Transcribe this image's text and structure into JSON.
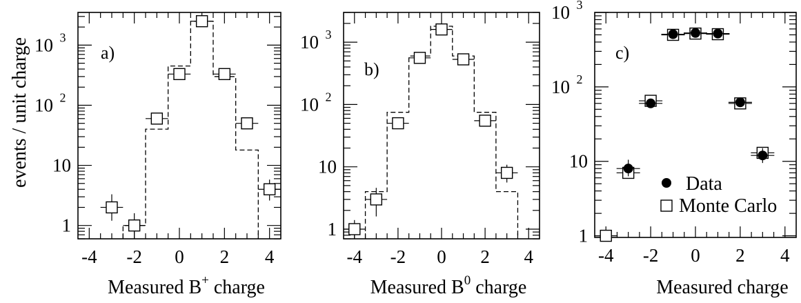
{
  "chart_data": [
    {
      "type": "histogram",
      "panel_label": "a)",
      "xlabel": "Measured B",
      "xlabel_sup": "+",
      "xlabel_tail": " charge",
      "ylabel": "events / unit charge",
      "y_scale": "log",
      "xlim": [
        -4.5,
        4.5
      ],
      "ylim": [
        0.6,
        3500
      ],
      "x_ticks": [
        -4,
        -2,
        0,
        2,
        4
      ],
      "x_tick_labels": [
        "-4",
        "-2",
        "0",
        "2",
        "4"
      ],
      "y_ticks": [
        {
          "value": 1,
          "label": "1"
        },
        {
          "value": 10,
          "label": "10"
        },
        {
          "value": 100,
          "label": "10",
          "sup": "2"
        },
        {
          "value": 1000,
          "label": "10",
          "sup": "3"
        }
      ],
      "data_points": [
        {
          "x": -3,
          "y": 2.0,
          "yerr": [
            1.2,
            3.3
          ]
        },
        {
          "x": -2,
          "y": 1.0,
          "yerr": [
            0.6,
            1.6
          ]
        },
        {
          "x": -1,
          "y": 60,
          "yerr": [
            52,
            68
          ]
        },
        {
          "x": 0,
          "y": 330,
          "yerr": [
            310,
            350
          ]
        },
        {
          "x": 1,
          "y": 2500,
          "yerr": [
            2420,
            2580
          ]
        },
        {
          "x": 2,
          "y": 330,
          "yerr": [
            310,
            350
          ]
        },
        {
          "x": 3,
          "y": 50,
          "yerr": [
            43,
            57
          ]
        },
        {
          "x": 4,
          "y": 4.0,
          "yerr": [
            2.6,
            5.8
          ]
        }
      ],
      "mc_histogram": [
        {
          "x": -2,
          "y": 1.0
        },
        {
          "x": -1,
          "y": 40
        },
        {
          "x": 0,
          "y": 450
        },
        {
          "x": 1,
          "y": 2500
        },
        {
          "x": 2,
          "y": 300
        },
        {
          "x": 3,
          "y": 18
        }
      ]
    },
    {
      "type": "histogram",
      "panel_label": "b)",
      "xlabel": "Measured B",
      "xlabel_sup": "0",
      "xlabel_tail": " charge",
      "ylabel": "",
      "y_scale": "log",
      "xlim": [
        -4.5,
        4.5
      ],
      "ylim": [
        0.7,
        3000
      ],
      "x_ticks": [
        -4,
        -2,
        0,
        2,
        4
      ],
      "x_tick_labels": [
        "-4",
        "-2",
        "0",
        "2",
        "4"
      ],
      "y_ticks": [
        {
          "value": 1,
          "label": "1"
        },
        {
          "value": 10,
          "label": "10"
        },
        {
          "value": 100,
          "label": "10",
          "sup": "2"
        },
        {
          "value": 1000,
          "label": "10",
          "sup": "3"
        }
      ],
      "data_points": [
        {
          "x": -4,
          "y": 1.0,
          "yerr": [
            0.7,
            1.4
          ]
        },
        {
          "x": -3,
          "y": 3.0,
          "yerr": [
            1.6,
            4.6
          ]
        },
        {
          "x": -2,
          "y": 50,
          "yerr": [
            43,
            57
          ]
        },
        {
          "x": -1,
          "y": 560,
          "yerr": [
            530,
            590
          ]
        },
        {
          "x": 0,
          "y": 1600,
          "yerr": [
            1540,
            1660
          ]
        },
        {
          "x": 1,
          "y": 530,
          "yerr": [
            500,
            560
          ]
        },
        {
          "x": 2,
          "y": 55,
          "yerr": [
            48,
            62
          ]
        },
        {
          "x": 3,
          "y": 8.0,
          "yerr": [
            5.6,
            10.8
          ]
        }
      ],
      "mc_histogram": [
        {
          "x": -3,
          "y": 4
        },
        {
          "x": -2,
          "y": 75
        },
        {
          "x": -1,
          "y": 600
        },
        {
          "x": 0,
          "y": 1800
        },
        {
          "x": 1,
          "y": 600
        },
        {
          "x": 2,
          "y": 75
        },
        {
          "x": 3,
          "y": 4
        }
      ]
    },
    {
      "type": "scatter",
      "panel_label": "c)",
      "xlabel": "Measured charge",
      "xlabel_sup": "",
      "xlabel_tail": "",
      "ylabel": "",
      "y_scale": "log",
      "xlim": [
        -4.5,
        4.5
      ],
      "ylim": [
        0.95,
        1000
      ],
      "x_ticks": [
        -4,
        -2,
        0,
        2,
        4
      ],
      "x_tick_labels": [
        "-4",
        "-2",
        "0",
        "2",
        "4"
      ],
      "y_ticks": [
        {
          "value": 1,
          "label": "1"
        },
        {
          "value": 10,
          "label": "10"
        },
        {
          "value": 100,
          "label": "10",
          "sup": "2"
        },
        {
          "value": 1000,
          "label": "10",
          "sup": "3"
        }
      ],
      "series": [
        {
          "name": "Data",
          "marker": "filled-circle",
          "points": [
            {
              "x": -3,
              "y": 8.0,
              "yerr": [
                6.3,
                10.5
              ]
            },
            {
              "x": -2,
              "y": 60,
              "yerr": [
                54,
                66
              ]
            },
            {
              "x": -1,
              "y": 510,
              "yerr": [
                480,
                540
              ]
            },
            {
              "x": 0,
              "y": 530,
              "yerr": [
                500,
                560
              ]
            },
            {
              "x": 1,
              "y": 520,
              "yerr": [
                490,
                550
              ]
            },
            {
              "x": 2,
              "y": 62,
              "yerr": [
                56,
                68
              ]
            },
            {
              "x": 3,
              "y": 12,
              "yerr": [
                9.5,
                15
              ]
            }
          ]
        },
        {
          "name": "Monte Carlo",
          "marker": "open-square",
          "points": [
            {
              "x": -4,
              "y": 1.0
            },
            {
              "x": -3,
              "y": 7.0
            },
            {
              "x": -2,
              "y": 65
            },
            {
              "x": -1,
              "y": 500
            },
            {
              "x": 0,
              "y": 520
            },
            {
              "x": 1,
              "y": 510
            },
            {
              "x": 2,
              "y": 60
            },
            {
              "x": 3,
              "y": 13
            }
          ]
        }
      ]
    }
  ]
}
